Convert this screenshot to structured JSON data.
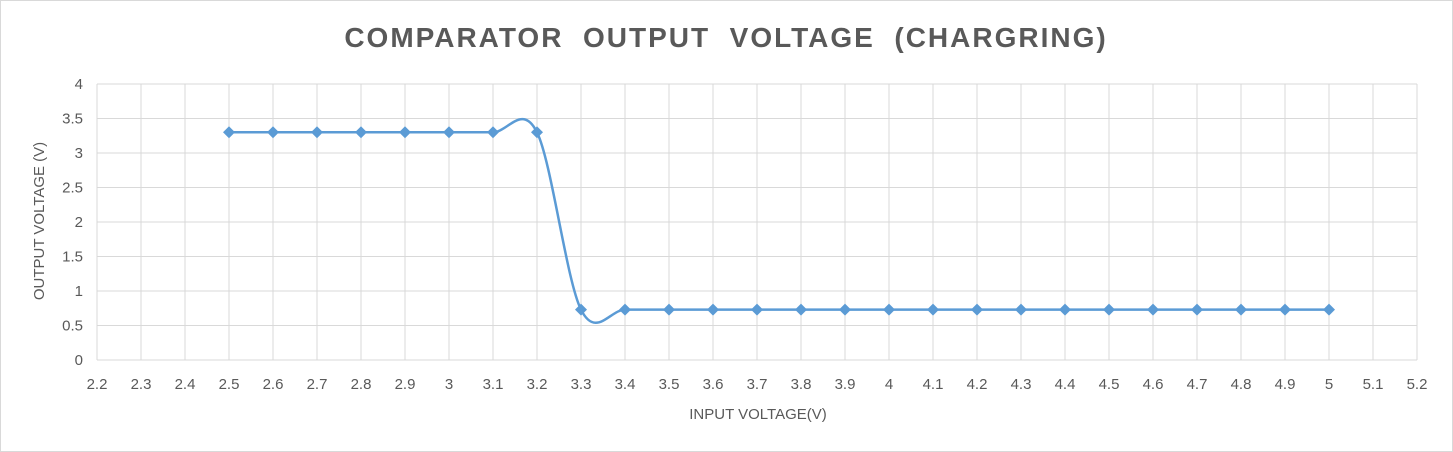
{
  "chart_data": {
    "type": "line",
    "title": "COMPARATOR  OUTPUT  VOLTAGE  (CHARGRING)",
    "xlabel": "INPUT VOLTAGE(V)",
    "ylabel": "OUTPUT VOLTAGE (V)",
    "xlim": [
      2.2,
      5.2
    ],
    "ylim": [
      0,
      4
    ],
    "x_ticks": [
      "2.2",
      "2.3",
      "2.4",
      "2.5",
      "2.6",
      "2.7",
      "2.8",
      "2.9",
      "3",
      "3.1",
      "3.2",
      "3.3",
      "3.4",
      "3.5",
      "3.6",
      "3.7",
      "3.8",
      "3.9",
      "4",
      "4.1",
      "4.2",
      "4.3",
      "4.4",
      "4.5",
      "4.6",
      "4.7",
      "4.8",
      "4.9",
      "5",
      "5.1",
      "5.2"
    ],
    "y_ticks": [
      "0",
      "0.5",
      "1",
      "1.5",
      "2",
      "2.5",
      "3",
      "3.5",
      "4"
    ],
    "grid": true,
    "legend": "none",
    "series_color": "#5b9bd5",
    "series": [
      {
        "x": [
          2.5,
          2.6,
          2.7,
          2.8,
          2.9,
          3.0,
          3.1,
          3.2,
          3.3,
          3.4,
          3.5,
          3.6,
          3.7,
          3.8,
          3.9,
          4.0,
          4.1,
          4.2,
          4.3,
          4.4,
          4.5,
          4.6,
          4.7,
          4.8,
          4.9,
          5.0
        ],
        "values": [
          3.3,
          3.3,
          3.3,
          3.3,
          3.3,
          3.3,
          3.3,
          3.3,
          0.73,
          0.73,
          0.73,
          0.73,
          0.73,
          0.73,
          0.73,
          0.73,
          0.73,
          0.73,
          0.73,
          0.73,
          0.73,
          0.73,
          0.73,
          0.73,
          0.73,
          0.73
        ]
      }
    ]
  }
}
